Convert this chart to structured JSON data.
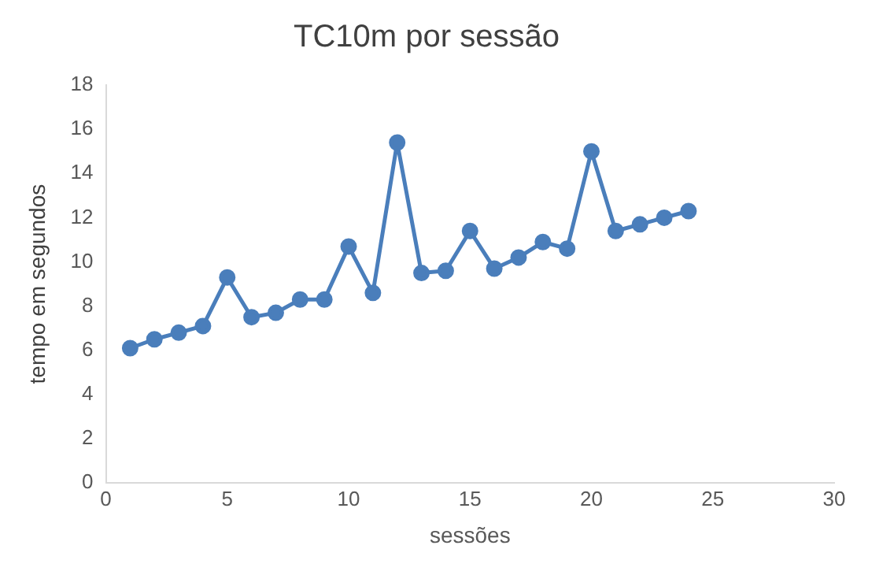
{
  "chart_data": {
    "type": "line",
    "title": "TC10m por sessão",
    "xlabel": "sessões",
    "ylabel": "tempo em segundos",
    "x": [
      1,
      2,
      3,
      4,
      5,
      6,
      7,
      8,
      9,
      10,
      11,
      12,
      13,
      14,
      15,
      16,
      17,
      18,
      19,
      20,
      21,
      22,
      23,
      24
    ],
    "series": [
      {
        "color": "#4a7ebb",
        "values": [
          6.1,
          6.5,
          6.8,
          7.1,
          9.3,
          7.5,
          7.7,
          8.3,
          8.3,
          10.7,
          8.6,
          15.4,
          9.5,
          9.6,
          11.4,
          9.7,
          10.2,
          10.9,
          10.6,
          15.0,
          11.4,
          11.7,
          12.0,
          12.3
        ]
      }
    ],
    "xlim": [
      0,
      30
    ],
    "xticks": [
      0,
      5,
      10,
      15,
      20,
      25,
      30
    ],
    "ylim": [
      0,
      18
    ],
    "yticks": [
      0,
      2,
      4,
      6,
      8,
      10,
      12,
      14,
      16,
      18
    ],
    "grid": false,
    "legend": false,
    "marker": "circle",
    "line_style": "solid"
  }
}
